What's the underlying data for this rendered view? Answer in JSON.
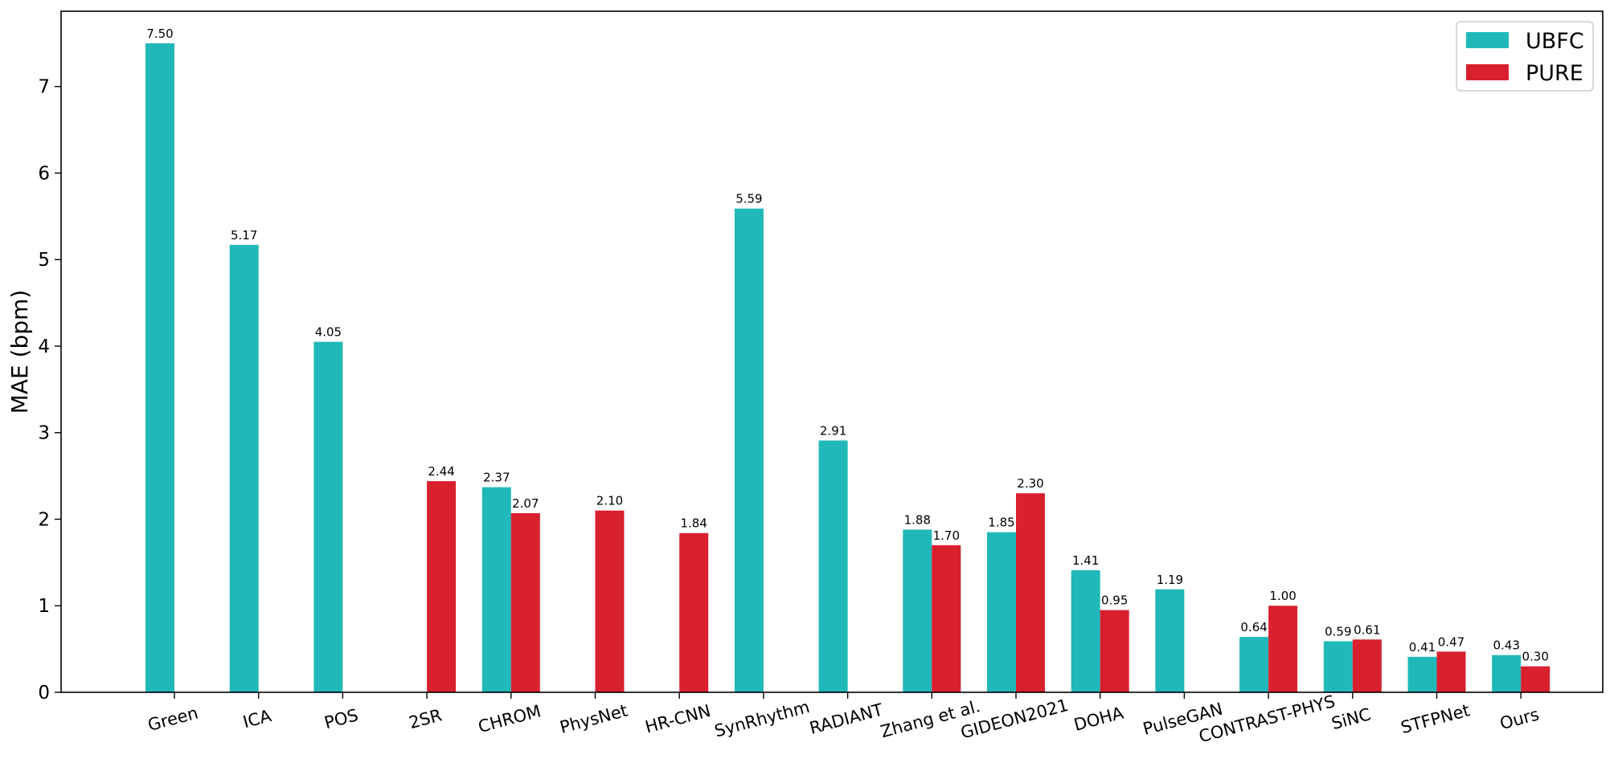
{
  "chart_data": {
    "type": "bar",
    "title": "",
    "xlabel": "",
    "ylabel": "MAE (bpm)",
    "ylim": [
      0,
      7.87
    ],
    "yticks": [
      0,
      1,
      2,
      3,
      4,
      5,
      6,
      7
    ],
    "legend_position": "top-right",
    "grid": false,
    "categories": [
      "Green",
      "ICA",
      "POS",
      "2SR",
      "CHROM",
      "PhysNet",
      "HR-CNN",
      "SynRhythm",
      "RADIANT",
      "Zhang et al.",
      "GIDEON2021",
      "DOHA",
      "PulseGAN",
      "CONTRAST-PHYS",
      "SiNC",
      "STFPNet",
      "Ours"
    ],
    "series": [
      {
        "name": "UBFC",
        "color": "#20b8b8",
        "values": [
          7.5,
          5.17,
          4.05,
          null,
          2.37,
          null,
          null,
          5.59,
          2.91,
          1.88,
          1.85,
          1.41,
          1.19,
          0.64,
          0.59,
          0.41,
          0.43
        ],
        "labels": [
          "7.50",
          "5.17",
          "4.05",
          null,
          "2.37",
          null,
          null,
          "5.59",
          "2.91",
          "1.88",
          "1.85",
          "1.41",
          "1.19",
          "0.64",
          "0.59",
          "0.41",
          "0.43"
        ]
      },
      {
        "name": "PURE",
        "color": "#d9202f",
        "values": [
          null,
          null,
          null,
          2.44,
          2.07,
          2.1,
          1.84,
          null,
          null,
          1.7,
          2.3,
          0.95,
          null,
          1.0,
          0.61,
          0.47,
          0.3
        ],
        "labels": [
          null,
          null,
          null,
          "2.44",
          "2.07",
          "2.10",
          "1.84",
          null,
          null,
          "1.70",
          "2.30",
          "0.95",
          null,
          "1.00",
          "0.61",
          "0.47",
          "0.30"
        ]
      }
    ]
  }
}
